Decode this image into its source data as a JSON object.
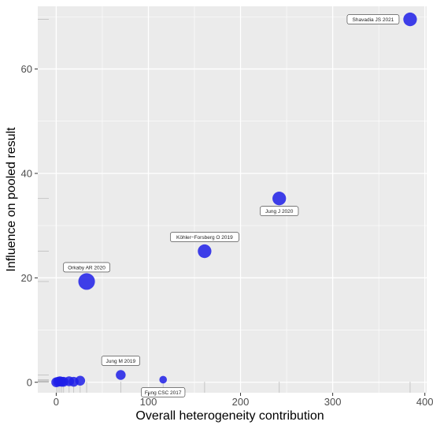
{
  "chart_data": {
    "type": "scatter",
    "title": "",
    "xlabel": "Overall heterogeneity contribution",
    "ylabel": "Influence on pooled result",
    "xlim": [
      -20,
      402
    ],
    "ylim": [
      -2,
      72
    ],
    "x_ticks": [
      0,
      100,
      200,
      300,
      400
    ],
    "x_tick_labels": [
      "0",
      "100",
      "200",
      "300",
      "400"
    ],
    "y_ticks": [
      0,
      20,
      40,
      60
    ],
    "y_tick_labels": [
      "0",
      "20",
      "40",
      "60"
    ],
    "grid": true,
    "background": "#ebebeb",
    "point_color": "#1f1fe8",
    "rug_color": "#bdbdbd",
    "points": [
      {
        "x": 384,
        "y": 69.5,
        "size": 1.8,
        "label": "Shavadia JS 2021",
        "label_side": "left"
      },
      {
        "x": 242,
        "y": 35.2,
        "size": 1.8,
        "label": "Jung J 2020",
        "label_side": "below"
      },
      {
        "x": 161,
        "y": 25.1,
        "size": 1.8,
        "label": "Köhler−Forsberg O 2019",
        "label_side": "above"
      },
      {
        "x": 33,
        "y": 19.3,
        "size": 2.2,
        "label": "Orkaby AR 2020",
        "label_side": "above"
      },
      {
        "x": 70,
        "y": 1.4,
        "size": 1.3,
        "label": "Jung M 2019",
        "label_side": "above"
      },
      {
        "x": 116,
        "y": 0.5,
        "size": 1.0,
        "label": "Fung CSC 2017",
        "label_side": "below"
      },
      {
        "x": 0,
        "y": 0.0,
        "size": 1.3,
        "label": ""
      },
      {
        "x": 2,
        "y": 0.1,
        "size": 1.3,
        "label": ""
      },
      {
        "x": 4,
        "y": 0.2,
        "size": 1.3,
        "label": ""
      },
      {
        "x": 6,
        "y": 0.1,
        "size": 1.3,
        "label": ""
      },
      {
        "x": 8,
        "y": 0.1,
        "size": 1.3,
        "label": ""
      },
      {
        "x": 14,
        "y": 0.2,
        "size": 1.3,
        "label": ""
      },
      {
        "x": 19,
        "y": 0.1,
        "size": 1.3,
        "label": ""
      },
      {
        "x": 26,
        "y": 0.3,
        "size": 1.3,
        "label": ""
      }
    ]
  }
}
